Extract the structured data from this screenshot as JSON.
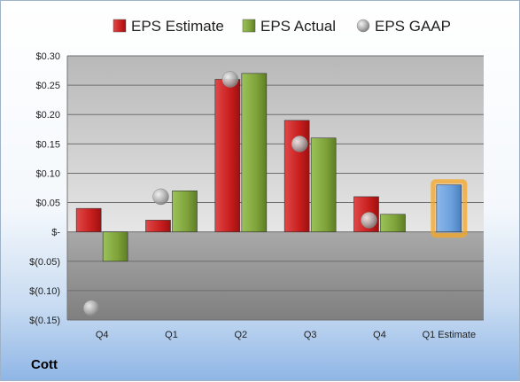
{
  "company": "Cott",
  "chart_data": {
    "type": "bar",
    "title": "",
    "xlabel": "",
    "ylabel": "",
    "ylim": [
      -0.15,
      0.3
    ],
    "yticks": [
      0.3,
      0.25,
      0.2,
      0.15,
      0.1,
      0.05,
      0.0,
      -0.05,
      -0.1,
      -0.15
    ],
    "ytick_labels": [
      "$0.30",
      "$0.25",
      "$0.20",
      "$0.15",
      "$0.10",
      "$0.05",
      "$-",
      "$(0.05)",
      "$(0.10)",
      "$(0.15)"
    ],
    "categories": [
      "Q4",
      "Q1",
      "Q2",
      "Q3",
      "Q4",
      "Q1 Estimate"
    ],
    "legend_position": "top",
    "series": [
      {
        "name": "EPS Estimate",
        "kind": "bar",
        "color": "#cc2222",
        "values": [
          0.04,
          0.02,
          0.26,
          0.19,
          0.06,
          null
        ]
      },
      {
        "name": "EPS Actual",
        "kind": "bar",
        "color": "#7fa23a",
        "values": [
          -0.05,
          0.07,
          0.27,
          0.16,
          0.03,
          null
        ]
      },
      {
        "name": "EPS GAAP",
        "kind": "marker",
        "color": "#a8a8a8",
        "values": [
          -0.13,
          0.06,
          0.26,
          0.15,
          0.02,
          null
        ]
      }
    ],
    "estimate": {
      "category": "Q1 Estimate",
      "value": 0.08,
      "color": "#6aa0dc",
      "glow": "#f5a623"
    },
    "grid": true
  }
}
